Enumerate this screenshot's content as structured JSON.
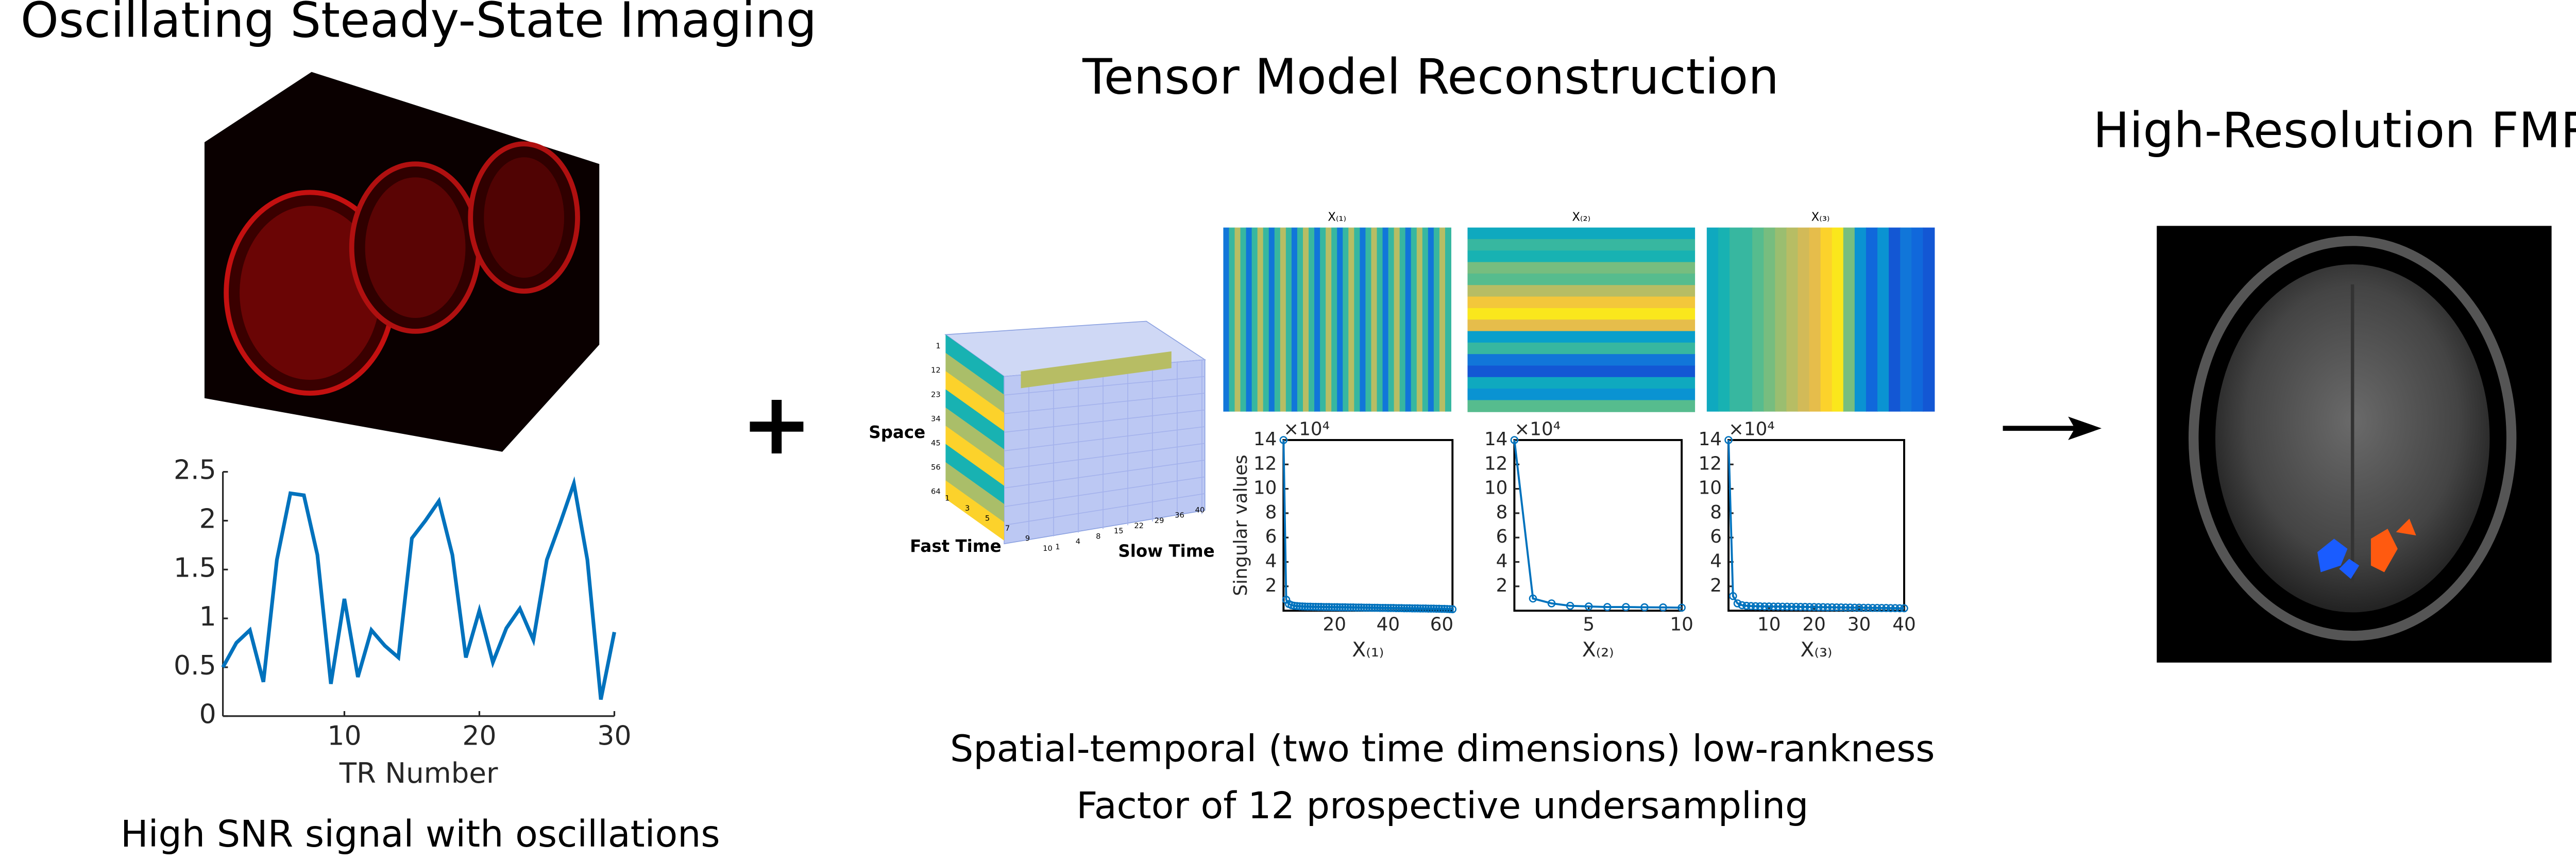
{
  "sections": {
    "imaging": {
      "title": "Oscillating Steady-State Imaging",
      "caption": "High SNR signal with oscillations"
    },
    "reconstruction": {
      "title": "Tensor Model Reconstruction",
      "caption_lines": [
        "Spatial-temporal (two time dimensions) low-rankness",
        "Factor of 12 prospective undersampling"
      ],
      "tensor_axes": {
        "space": "Space",
        "fast_time": "Fast Time",
        "slow_time": "Slow Time"
      },
      "space_ticks": [
        "1",
        "12",
        "23",
        "34",
        "45",
        "56",
        "64"
      ],
      "fast_time_ticks": [
        "1",
        "3",
        "5",
        "7",
        "9",
        "10"
      ],
      "slow_time_ticks": [
        "1",
        "4",
        "8",
        "15",
        "22",
        "29",
        "36",
        "40"
      ],
      "unfolding_labels": [
        "X₍₁₎",
        "X₍₂₎",
        "X₍₃₎"
      ]
    },
    "result": {
      "title": "High-Resolution FMRI"
    }
  },
  "chart_data": [
    {
      "type": "line",
      "xlabel": "TR Number",
      "color": "#0072bd",
      "x": [
        1,
        2,
        3,
        4,
        5,
        6,
        7,
        8,
        9,
        10,
        11,
        12,
        13,
        14,
        15,
        16,
        17,
        18,
        19,
        20,
        21,
        22,
        23,
        24,
        25,
        26,
        27,
        28,
        29,
        30
      ],
      "values": [
        0.5,
        0.75,
        0.88,
        0.35,
        1.6,
        2.28,
        2.26,
        1.65,
        0.33,
        1.2,
        0.4,
        0.88,
        0.72,
        0.6,
        1.82,
        2.0,
        2.2,
        1.65,
        0.6,
        1.08,
        0.55,
        0.9,
        1.1,
        0.78,
        1.6,
        1.98,
        2.38,
        1.6,
        0.17,
        0.86
      ],
      "xlim": [
        1,
        30
      ],
      "xticks": [
        10,
        20,
        30
      ],
      "ylim": [
        0,
        2.5
      ],
      "yticks": [
        0,
        0.5,
        1,
        1.5,
        2,
        2.5
      ]
    },
    {
      "type": "line",
      "xlabel": "X₍₁₎",
      "ylabel": "Singular values",
      "y_multiplier": "×10⁴",
      "color": "#0072bd",
      "markers": true,
      "frame": true,
      "x": [
        1,
        2,
        3,
        4,
        5,
        6,
        7,
        8,
        9,
        10,
        11,
        12,
        13,
        14,
        15,
        16,
        17,
        18,
        19,
        20,
        21,
        22,
        23,
        24,
        25,
        26,
        27,
        28,
        29,
        30,
        31,
        32,
        33,
        34,
        35,
        36,
        37,
        38,
        39,
        40,
        41,
        42,
        43,
        44,
        45,
        46,
        47,
        48,
        49,
        50,
        51,
        52,
        53,
        54,
        55,
        56,
        57,
        58,
        59,
        60,
        61,
        62,
        63,
        64
      ],
      "values": [
        14,
        0.9,
        0.55,
        0.45,
        0.4,
        0.38,
        0.36,
        0.35,
        0.34,
        0.33,
        0.33,
        0.32,
        0.32,
        0.31,
        0.31,
        0.3,
        0.3,
        0.3,
        0.29,
        0.29,
        0.29,
        0.28,
        0.28,
        0.28,
        0.27,
        0.27,
        0.27,
        0.26,
        0.26,
        0.26,
        0.25,
        0.25,
        0.25,
        0.24,
        0.24,
        0.24,
        0.23,
        0.23,
        0.23,
        0.22,
        0.22,
        0.22,
        0.21,
        0.21,
        0.21,
        0.2,
        0.2,
        0.2,
        0.19,
        0.19,
        0.19,
        0.18,
        0.18,
        0.18,
        0.17,
        0.17,
        0.17,
        0.16,
        0.16,
        0.15,
        0.15,
        0.14,
        0.13,
        0.12
      ],
      "xlim": [
        1,
        64
      ],
      "xticks": [
        20,
        40,
        60
      ],
      "ylim": [
        0,
        14
      ],
      "yticks": [
        2,
        4,
        6,
        8,
        10,
        12,
        14
      ]
    },
    {
      "type": "line",
      "xlabel": "X₍₂₎",
      "y_multiplier": "×10⁴",
      "color": "#0072bd",
      "markers": true,
      "frame": true,
      "x": [
        1,
        2,
        3,
        4,
        5,
        6,
        7,
        8,
        9,
        10
      ],
      "values": [
        14,
        1.0,
        0.6,
        0.4,
        0.35,
        0.3,
        0.3,
        0.28,
        0.27,
        0.25
      ],
      "xlim": [
        1,
        10
      ],
      "xticks": [
        5,
        10
      ],
      "ylim": [
        0,
        14
      ],
      "yticks": [
        2,
        4,
        6,
        8,
        10,
        12,
        14
      ]
    },
    {
      "type": "line",
      "xlabel": "X₍₃₎",
      "y_multiplier": "×10⁴",
      "color": "#0072bd",
      "markers": true,
      "frame": true,
      "x": [
        1,
        2,
        3,
        4,
        5,
        6,
        7,
        8,
        9,
        10,
        11,
        12,
        13,
        14,
        15,
        16,
        17,
        18,
        19,
        20,
        21,
        22,
        23,
        24,
        25,
        26,
        27,
        28,
        29,
        30,
        31,
        32,
        33,
        34,
        35,
        36,
        37,
        38,
        39,
        40
      ],
      "values": [
        14,
        1.2,
        0.6,
        0.45,
        0.4,
        0.38,
        0.37,
        0.36,
        0.35,
        0.35,
        0.34,
        0.34,
        0.33,
        0.33,
        0.32,
        0.32,
        0.31,
        0.31,
        0.3,
        0.3,
        0.29,
        0.29,
        0.28,
        0.28,
        0.27,
        0.27,
        0.26,
        0.26,
        0.25,
        0.25,
        0.24,
        0.24,
        0.23,
        0.23,
        0.22,
        0.22,
        0.21,
        0.21,
        0.2,
        0.2
      ],
      "xlim": [
        1,
        40
      ],
      "xticks": [
        10,
        20,
        30,
        40
      ],
      "ylim": [
        0,
        14
      ],
      "yticks": [
        2,
        4,
        6,
        8,
        10,
        12,
        14
      ]
    }
  ]
}
